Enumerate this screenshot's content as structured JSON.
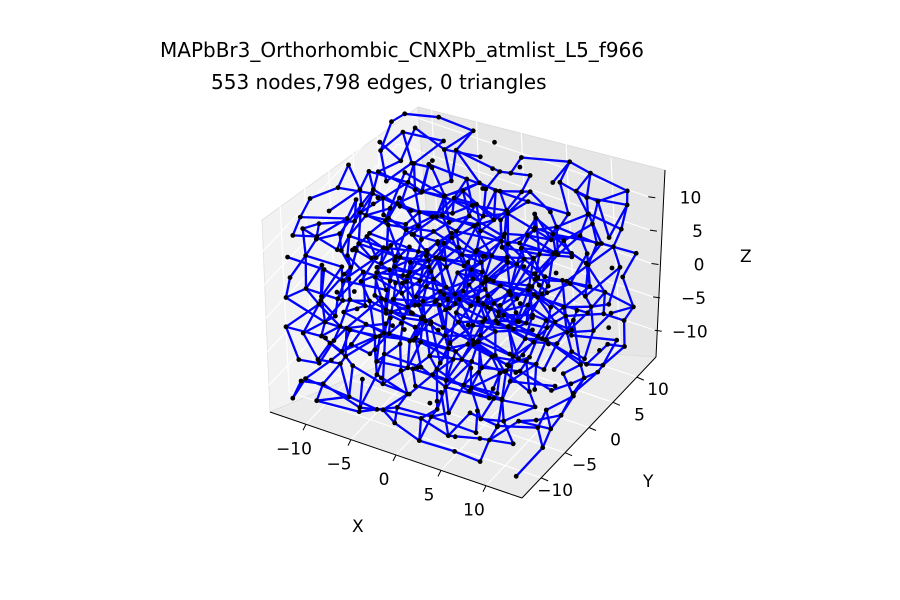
{
  "chart_data": {
    "type": "scatter",
    "projection": "3d",
    "title_line1": "MAPbBr3_Orthorhombic_CNXPb_atmlist_L5_f966",
    "title_line2": "553 nodes,798 edges, 0 triangles",
    "xlabel": "X",
    "ylabel": "Y",
    "zlabel": "Z",
    "x_ticks": [
      "−10",
      "−5",
      "0",
      "5",
      "10"
    ],
    "y_ticks": [
      "−10",
      "−5",
      "0",
      "5",
      "10"
    ],
    "z_ticks": [
      "−10",
      "−5",
      "0",
      "5",
      "10"
    ],
    "xlim": [
      -14,
      14
    ],
    "ylim": [
      -14,
      14
    ],
    "zlim": [
      -14,
      14
    ],
    "nodes": 553,
    "edges": 798,
    "triangles": 0,
    "grid": true,
    "node_color": "#000000",
    "edge_color": "#0000ff"
  }
}
